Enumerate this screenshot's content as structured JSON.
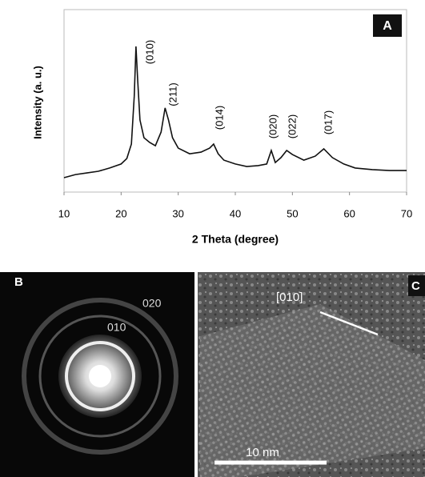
{
  "chart_data": {
    "type": "line",
    "panel_label": "A",
    "xlabel": "2 Theta (degree)",
    "ylabel": "Intensity (a. u.)",
    "x": [
      10,
      12,
      14,
      16,
      18,
      20,
      21,
      21.8,
      22.3,
      22.6,
      22.9,
      23.3,
      24,
      25,
      26,
      27,
      27.7,
      28.3,
      29,
      30,
      32,
      34,
      35.5,
      36.2,
      37,
      38,
      40,
      42,
      44,
      45.5,
      46.3,
      47,
      48,
      49,
      50,
      52,
      54,
      55.5,
      57,
      59,
      61,
      64,
      67,
      70
    ],
    "series": [
      {
        "color": "#111111",
        "values": [
          7.9,
          9.6,
          10.5,
          11.4,
          13.2,
          15.4,
          18.4,
          26.3,
          52.6,
          79.8,
          61.4,
          39.5,
          29.8,
          27.2,
          25.4,
          32.9,
          46.1,
          39.5,
          29.8,
          24.1,
          21,
          21.9,
          24.1,
          26.3,
          21,
          17.5,
          15.4,
          14,
          14.5,
          15.4,
          22.8,
          16.2,
          18.9,
          22.8,
          20.6,
          17.5,
          19.7,
          23.7,
          18.9,
          15.4,
          13.2,
          12.3,
          11.8,
          11.8
        ]
      }
    ],
    "xlim": [
      10,
      70
    ],
    "ylim": [
      0,
      100
    ],
    "xticks": [
      10,
      20,
      30,
      40,
      50,
      60,
      70
    ],
    "annotations": [
      "(010)",
      "(211)",
      "(014)",
      "(020)",
      "(022)",
      "(017)"
    ]
  },
  "panels": [
    {
      "label": "B",
      "texts": [
        "020",
        "010"
      ]
    },
    {
      "label": "C",
      "texts": [
        "[010]",
        "10 nm"
      ]
    }
  ]
}
